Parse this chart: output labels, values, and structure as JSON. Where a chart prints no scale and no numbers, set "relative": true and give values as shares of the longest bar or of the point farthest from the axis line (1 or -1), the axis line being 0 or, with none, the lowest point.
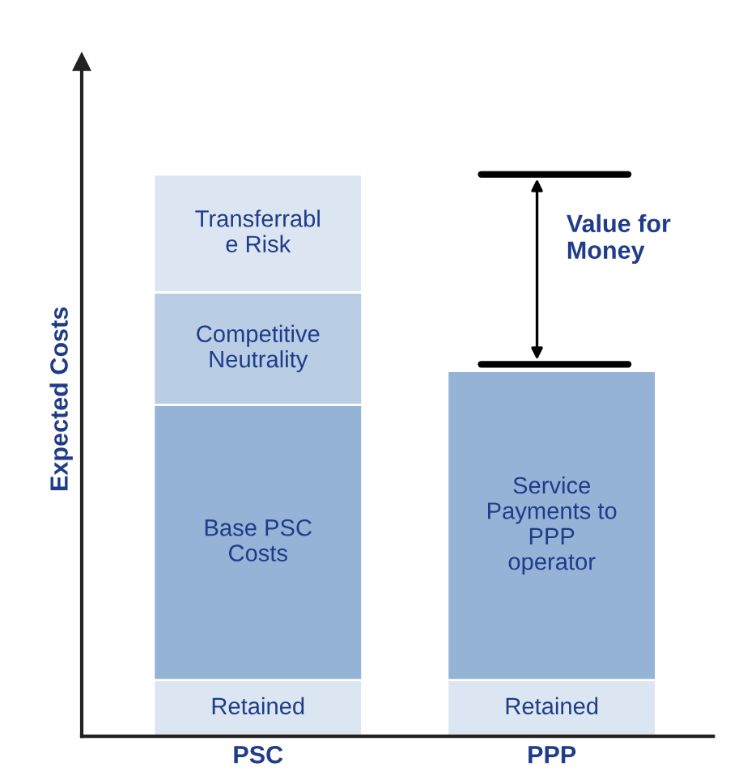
{
  "chart_data": {
    "type": "bar",
    "stacked": true,
    "relative": true,
    "ylabel": "Expected Costs",
    "categories": [
      "PSC",
      "PPP"
    ],
    "series": [
      {
        "name": "Retained",
        "color": "#dce6f2",
        "values": [
          0.1,
          0.1
        ]
      },
      {
        "name": "Base PSC\nCosts",
        "color": "#95b3d7",
        "values": [
          0.49,
          null
        ]
      },
      {
        "name": "Service\nPayments to\nPPP\noperator",
        "color": "#95b3d7",
        "values": [
          null,
          0.55
        ]
      },
      {
        "name": "Competitive\nNeutrality",
        "color": "#b9cde5",
        "values": [
          0.2,
          null
        ]
      },
      {
        "name": "Transferrabl\ne Risk",
        "color": "#dce6f2",
        "values": [
          0.21,
          null
        ]
      }
    ],
    "annotations": [
      "Value for Money"
    ],
    "grid": false,
    "legend": false
  }
}
